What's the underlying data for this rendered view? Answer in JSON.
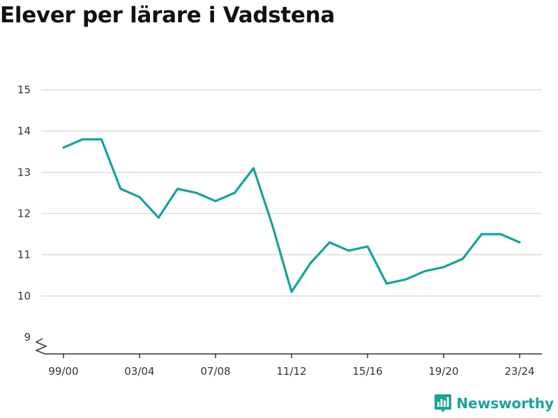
{
  "colors": {
    "line": "#13a398",
    "grid": "#dcdcdc",
    "axis": "#333333",
    "brand": "#1aa39a"
  },
  "brand": {
    "name": "Newsworthy",
    "icon": "bar-chart-logo-icon"
  },
  "chart_data": {
    "type": "line",
    "title": "Elever per lärare i Vadstena",
    "xlabel": "",
    "ylabel": "",
    "x": [
      "99/00",
      "00/01",
      "01/02",
      "02/03",
      "03/04",
      "04/05",
      "05/06",
      "06/07",
      "07/08",
      "08/09",
      "09/10",
      "10/11",
      "11/12",
      "12/13",
      "13/14",
      "14/15",
      "15/16",
      "16/17",
      "17/18",
      "18/19",
      "19/20",
      "20/21",
      "21/22",
      "22/23",
      "23/24"
    ],
    "x_tick_labels": [
      "99/00",
      "03/04",
      "07/08",
      "11/12",
      "15/16",
      "19/20",
      "23/24"
    ],
    "y_ticks": [
      9,
      10,
      11,
      12,
      13,
      14,
      15
    ],
    "ylim": [
      9,
      15
    ],
    "axis_break": true,
    "grid": true,
    "series": [
      {
        "values": [
          13.6,
          13.8,
          13.8,
          12.6,
          12.4,
          11.9,
          12.6,
          12.5,
          12.3,
          12.5,
          13.1,
          11.7,
          10.1,
          10.8,
          11.3,
          11.1,
          11.2,
          10.3,
          10.4,
          10.6,
          10.7,
          10.9,
          11.5,
          11.5,
          11.3
        ]
      }
    ]
  }
}
